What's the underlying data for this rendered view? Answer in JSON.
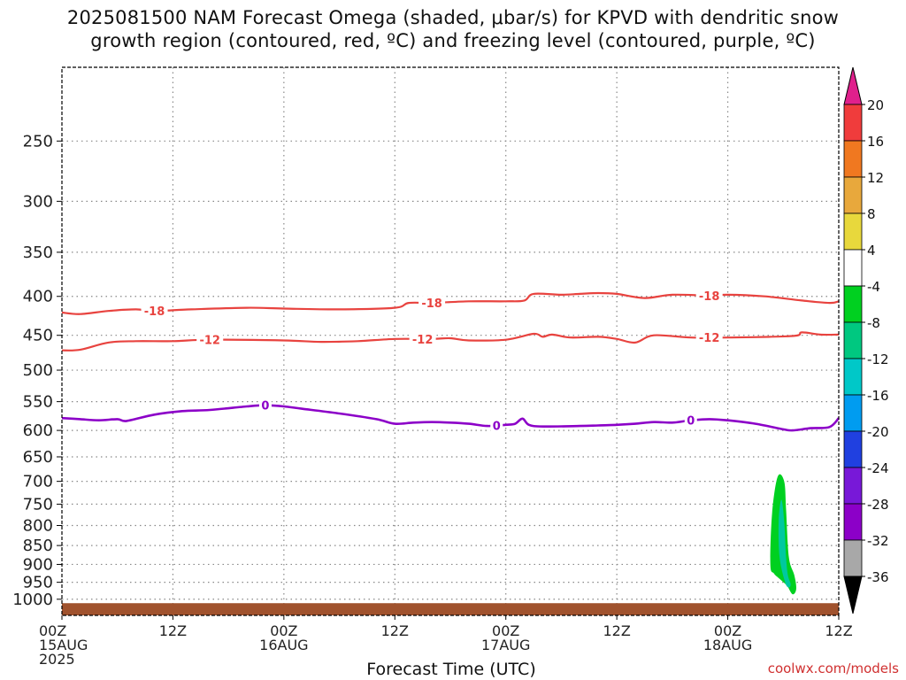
{
  "title_line1": "2025081500 NAM Forecast Omega (shaded, μbar/s) for KPVD with dendritic snow",
  "title_line2": "growth region (contoured, red, ºC) and freezing level (contoured, purple, ºC)",
  "credit": "coolwx.com/models",
  "colors": {
    "red_contour": "#e8433f",
    "purple_contour": "#8c00c8",
    "ground": "#a0522d",
    "shade_green": "#00d020",
    "shade_teal": "#00c8a0",
    "grid": "#888888"
  },
  "chart_data": {
    "type": "time-height cross-section",
    "xlabel": "Forecast Time (UTC)",
    "ylabel": "",
    "x_range_hours": [
      0,
      84
    ],
    "y_scale": "log-pressure (inverted)",
    "y_range_hPa": [
      1050,
      200
    ],
    "x_ticks": [
      {
        "h": 0,
        "lines": [
          "00Z",
          "15AUG",
          "2025"
        ]
      },
      {
        "h": 12,
        "lines": [
          "12Z"
        ]
      },
      {
        "h": 24,
        "lines": [
          "00Z",
          "16AUG"
        ]
      },
      {
        "h": 36,
        "lines": [
          "12Z"
        ]
      },
      {
        "h": 48,
        "lines": [
          "00Z",
          "17AUG"
        ]
      },
      {
        "h": 60,
        "lines": [
          "12Z"
        ]
      },
      {
        "h": 72,
        "lines": [
          "00Z",
          "18AUG"
        ]
      },
      {
        "h": 84,
        "lines": [
          "12Z"
        ]
      }
    ],
    "y_ticks": [
      250,
      300,
      350,
      400,
      450,
      500,
      550,
      600,
      650,
      700,
      750,
      800,
      850,
      900,
      950,
      1000
    ],
    "grid": true,
    "contours": [
      {
        "label": "-18",
        "color": "red",
        "points": [
          [
            0,
            420
          ],
          [
            2,
            422
          ],
          [
            5,
            418
          ],
          [
            8,
            416
          ],
          [
            10,
            418
          ],
          [
            14,
            416
          ],
          [
            20,
            414
          ],
          [
            24,
            415
          ],
          [
            30,
            416
          ],
          [
            36,
            414
          ],
          [
            37.5,
            408
          ],
          [
            40,
            408
          ],
          [
            44,
            406
          ],
          [
            48,
            406
          ],
          [
            50,
            405
          ],
          [
            51,
            397
          ],
          [
            54,
            398
          ],
          [
            56,
            397
          ],
          [
            58,
            396
          ],
          [
            60,
            397
          ],
          [
            63,
            402
          ],
          [
            66,
            398
          ],
          [
            70,
            399
          ],
          [
            72,
            398
          ],
          [
            76,
            400
          ],
          [
            80,
            405
          ],
          [
            83,
            408
          ],
          [
            84,
            406
          ]
        ],
        "label_hours": [
          10,
          40,
          70
        ]
      },
      {
        "label": "-12",
        "color": "red",
        "points": [
          [
            0,
            471
          ],
          [
            2,
            470
          ],
          [
            5,
            460
          ],
          [
            8,
            458
          ],
          [
            12,
            458
          ],
          [
            16,
            456
          ],
          [
            24,
            457
          ],
          [
            28,
            459
          ],
          [
            32,
            458
          ],
          [
            36,
            455
          ],
          [
            40,
            455
          ],
          [
            42,
            454
          ],
          [
            44,
            457
          ],
          [
            48,
            456
          ],
          [
            51,
            448
          ],
          [
            52,
            452
          ],
          [
            53,
            449
          ],
          [
            55,
            453
          ],
          [
            58,
            452
          ],
          [
            60,
            455
          ],
          [
            62,
            460
          ],
          [
            64,
            450
          ],
          [
            68,
            453
          ],
          [
            72,
            453
          ],
          [
            79,
            451
          ],
          [
            80,
            446
          ],
          [
            82,
            449
          ],
          [
            84,
            449
          ]
        ],
        "label_hours": [
          16,
          39,
          70
        ]
      },
      {
        "label": "0",
        "color": "purple",
        "points": [
          [
            0,
            578
          ],
          [
            2,
            580
          ],
          [
            4,
            582
          ],
          [
            6,
            580
          ],
          [
            7,
            583
          ],
          [
            10,
            572
          ],
          [
            13,
            566
          ],
          [
            16,
            564
          ],
          [
            20,
            558
          ],
          [
            22,
            556
          ],
          [
            24,
            558
          ],
          [
            26,
            562
          ],
          [
            30,
            570
          ],
          [
            34,
            580
          ],
          [
            36,
            588
          ],
          [
            38,
            586
          ],
          [
            40,
            585
          ],
          [
            42,
            586
          ],
          [
            44,
            588
          ],
          [
            46,
            592
          ],
          [
            48,
            590
          ],
          [
            49,
            588
          ],
          [
            49.8,
            579
          ],
          [
            50.5,
            590
          ],
          [
            52,
            593
          ],
          [
            56,
            592
          ],
          [
            58,
            591
          ],
          [
            60,
            590
          ],
          [
            62,
            588
          ],
          [
            64,
            585
          ],
          [
            66,
            586
          ],
          [
            68,
            582
          ],
          [
            70,
            580
          ],
          [
            72,
            582
          ],
          [
            75,
            588
          ],
          [
            78,
            598
          ],
          [
            79,
            600
          ],
          [
            81,
            596
          ],
          [
            83,
            594
          ],
          [
            84,
            578
          ]
        ],
        "label_hours": [
          22,
          47,
          68
        ]
      }
    ],
    "shaded": [
      {
        "level_range": [
          -8,
          -4
        ],
        "color": "green",
        "points": [
          [
            76.6,
            900
          ],
          [
            76.8,
            770
          ],
          [
            77.4,
            690
          ],
          [
            78.1,
            700
          ],
          [
            78.3,
            760
          ],
          [
            78.6,
            880
          ],
          [
            79.2,
            930
          ],
          [
            79.4,
            970
          ],
          [
            79.0,
            985
          ],
          [
            78.4,
            960
          ],
          [
            77.6,
            940
          ],
          [
            77.0,
            925
          ]
        ]
      },
      {
        "level_range": [
          -12,
          -8
        ],
        "color": "teal",
        "points": [
          [
            77.6,
            880
          ],
          [
            77.5,
            790
          ],
          [
            77.8,
            740
          ],
          [
            78.1,
            790
          ],
          [
            78.3,
            880
          ],
          [
            78.5,
            930
          ],
          [
            78.8,
            955
          ],
          [
            78.6,
            965
          ],
          [
            78.2,
            950
          ]
        ]
      }
    ],
    "colorbar": {
      "levels": [
        20,
        16,
        12,
        8,
        4,
        -4,
        -8,
        -12,
        -16,
        -20,
        -24,
        -28,
        -32,
        -36
      ],
      "colors": [
        "#f03c3c",
        "#f07820",
        "#e8a83c",
        "#e8d83c",
        "#ffffff",
        "#00d020",
        "#00c880",
        "#00c8c8",
        "#009cf0",
        "#2040e0",
        "#7818d8",
        "#8c00c8",
        "#a8a8a8"
      ],
      "top_arrow": "#e0208c",
      "bottom_arrow": "#000000"
    }
  }
}
